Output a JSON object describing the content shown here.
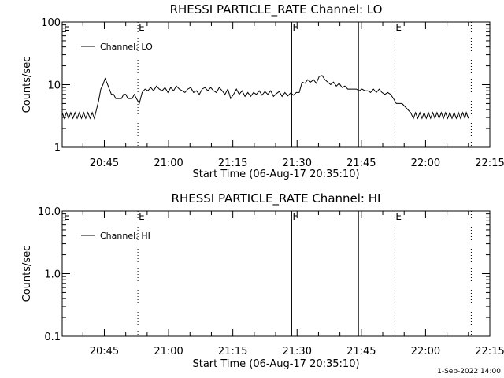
{
  "footer": "1-Sep-2022 14:00",
  "chart_data": [
    {
      "type": "line",
      "title": "RHESSI PARTICLE_RATE Channel: LO",
      "xlabel": "Start Time (06-Aug-17 20:35:10)",
      "ylabel": "Counts/sec",
      "yscale": "log",
      "ylim": [
        1,
        100
      ],
      "yticks": [
        {
          "v": 1,
          "label": "1"
        },
        {
          "v": 10,
          "label": "10"
        },
        {
          "v": 100,
          "label": "100"
        }
      ],
      "xlim": [
        "20:35:10",
        "22:15:00"
      ],
      "xticks": [
        "20:45",
        "21:00",
        "21:15",
        "21:30",
        "21:45",
        "22:00",
        "22:15"
      ],
      "legend": "top-left",
      "series": [
        {
          "name": "Channel: LO",
          "color": "#000000",
          "points": [
            [
              "20:35:10",
              3.6
            ],
            [
              "20:35:40",
              2.9
            ],
            [
              "20:36:10",
              3.6
            ],
            [
              "20:36:40",
              2.9
            ],
            [
              "20:37:10",
              3.6
            ],
            [
              "20:37:40",
              2.9
            ],
            [
              "20:38:10",
              3.6
            ],
            [
              "20:38:40",
              2.9
            ],
            [
              "20:39:10",
              3.6
            ],
            [
              "20:39:40",
              2.9
            ],
            [
              "20:40:10",
              3.6
            ],
            [
              "20:40:40",
              2.9
            ],
            [
              "20:41:10",
              3.6
            ],
            [
              "20:41:40",
              2.9
            ],
            [
              "20:42:10",
              3.6
            ],
            [
              "20:42:40",
              2.9
            ],
            [
              "20:43:10",
              4.0
            ],
            [
              "20:43:40",
              5.5
            ],
            [
              "20:44:10",
              8.5
            ],
            [
              "20:44:40",
              10.0
            ],
            [
              "20:45:10",
              12.5
            ],
            [
              "20:45:40",
              10.5
            ],
            [
              "20:46:10",
              8.5
            ],
            [
              "20:46:40",
              7.0
            ],
            [
              "20:47:10",
              7.0
            ],
            [
              "20:47:40",
              6.0
            ],
            [
              "20:48:10",
              6.0
            ],
            [
              "20:49:00",
              6.0
            ],
            [
              "20:49:30",
              7.0
            ],
            [
              "20:50:00",
              7.0
            ],
            [
              "20:50:30",
              6.0
            ],
            [
              "20:51:00",
              6.0
            ],
            [
              "20:51:30",
              6.0
            ],
            [
              "20:52:00",
              7.0
            ],
            [
              "20:52:30",
              6.0
            ],
            [
              "20:53:10",
              5.0
            ],
            [
              "20:53:50",
              7.5
            ],
            [
              "20:54:30",
              8.5
            ],
            [
              "20:55:10",
              8.0
            ],
            [
              "20:55:50",
              9.0
            ],
            [
              "20:56:30",
              8.0
            ],
            [
              "20:57:10",
              9.5
            ],
            [
              "20:57:50",
              8.5
            ],
            [
              "20:58:30",
              8.0
            ],
            [
              "20:59:10",
              9.0
            ],
            [
              "20:59:50",
              7.5
            ],
            [
              "21:00:30",
              9.0
            ],
            [
              "21:01:10",
              8.0
            ],
            [
              "21:01:50",
              9.5
            ],
            [
              "21:02:30",
              8.5
            ],
            [
              "21:03:10",
              8.0
            ],
            [
              "21:03:50",
              7.5
            ],
            [
              "21:04:30",
              8.5
            ],
            [
              "21:05:10",
              9.0
            ],
            [
              "21:05:50",
              7.5
            ],
            [
              "21:06:30",
              8.0
            ],
            [
              "21:07:10",
              7.0
            ],
            [
              "21:07:50",
              8.5
            ],
            [
              "21:08:30",
              9.0
            ],
            [
              "21:09:10",
              8.0
            ],
            [
              "21:09:50",
              9.0
            ],
            [
              "21:10:30",
              8.0
            ],
            [
              "21:11:10",
              7.5
            ],
            [
              "21:11:50",
              9.0
            ],
            [
              "21:12:30",
              8.0
            ],
            [
              "21:13:10",
              7.0
            ],
            [
              "21:13:50",
              8.5
            ],
            [
              "21:14:30",
              6.0
            ],
            [
              "21:15:10",
              7.0
            ],
            [
              "21:15:50",
              8.5
            ],
            [
              "21:16:30",
              7.0
            ],
            [
              "21:17:10",
              8.0
            ],
            [
              "21:17:50",
              6.5
            ],
            [
              "21:18:30",
              7.5
            ],
            [
              "21:19:10",
              6.5
            ],
            [
              "21:19:50",
              7.5
            ],
            [
              "21:20:30",
              7.0
            ],
            [
              "21:21:10",
              8.0
            ],
            [
              "21:21:50",
              6.8
            ],
            [
              "21:22:30",
              7.8
            ],
            [
              "21:23:10",
              7.0
            ],
            [
              "21:23:50",
              8.0
            ],
            [
              "21:24:30",
              6.5
            ],
            [
              "21:25:10",
              7.2
            ],
            [
              "21:25:50",
              7.8
            ],
            [
              "21:26:30",
              6.5
            ],
            [
              "21:27:10",
              7.5
            ],
            [
              "21:27:50",
              6.6
            ],
            [
              "21:28:30",
              7.4
            ],
            [
              "21:29:10",
              6.8
            ],
            [
              "21:29:50",
              7.5
            ],
            [
              "21:30:30",
              7.5
            ],
            [
              "21:31:10",
              11.0
            ],
            [
              "21:31:50",
              10.5
            ],
            [
              "21:32:30",
              12.0
            ],
            [
              "21:33:10",
              11.0
            ],
            [
              "21:33:50",
              12.0
            ],
            [
              "21:34:30",
              10.5
            ],
            [
              "21:35:10",
              13.5
            ],
            [
              "21:35:50",
              14.0
            ],
            [
              "21:36:30",
              12.0
            ],
            [
              "21:37:10",
              11.0
            ],
            [
              "21:37:50",
              10.0
            ],
            [
              "21:38:30",
              11.0
            ],
            [
              "21:39:10",
              9.5
            ],
            [
              "21:39:50",
              10.5
            ],
            [
              "21:40:30",
              9.0
            ],
            [
              "21:41:10",
              9.5
            ],
            [
              "21:41:50",
              8.5
            ],
            [
              "21:42:30",
              8.5
            ],
            [
              "21:43:10",
              8.5
            ],
            [
              "21:43:50",
              8.5
            ],
            [
              "21:44:30",
              8.0
            ],
            [
              "21:45:10",
              8.5
            ],
            [
              "21:45:50",
              8.0
            ],
            [
              "21:46:30",
              8.0
            ],
            [
              "21:47:10",
              7.5
            ],
            [
              "21:47:50",
              8.5
            ],
            [
              "21:48:30",
              7.5
            ],
            [
              "21:49:10",
              8.5
            ],
            [
              "21:49:50",
              7.5
            ],
            [
              "21:50:30",
              7.0
            ],
            [
              "21:51:10",
              7.5
            ],
            [
              "21:51:50",
              7.0
            ],
            [
              "21:52:30",
              6.0
            ],
            [
              "21:53:10",
              5.0
            ],
            [
              "21:53:50",
              5.0
            ],
            [
              "21:54:30",
              5.0
            ],
            [
              "21:55:10",
              4.5
            ],
            [
              "21:55:50",
              4.0
            ],
            [
              "21:56:30",
              3.6
            ],
            [
              "21:57:10",
              2.9
            ],
            [
              "21:57:40",
              3.6
            ],
            [
              "21:58:10",
              2.9
            ],
            [
              "21:58:40",
              3.6
            ],
            [
              "21:59:10",
              2.9
            ],
            [
              "21:59:40",
              3.6
            ],
            [
              "22:00:10",
              2.9
            ],
            [
              "22:00:40",
              3.6
            ],
            [
              "22:01:10",
              2.9
            ],
            [
              "22:01:40",
              3.6
            ],
            [
              "22:02:10",
              2.9
            ],
            [
              "22:02:40",
              3.6
            ],
            [
              "22:03:10",
              2.9
            ],
            [
              "22:03:40",
              3.6
            ],
            [
              "22:04:10",
              2.9
            ],
            [
              "22:04:40",
              3.6
            ],
            [
              "22:05:10",
              2.9
            ],
            [
              "22:05:40",
              3.6
            ],
            [
              "22:06:10",
              2.9
            ],
            [
              "22:06:40",
              3.6
            ],
            [
              "22:07:10",
              2.9
            ],
            [
              "22:07:40",
              3.6
            ],
            [
              "22:08:10",
              2.9
            ],
            [
              "22:08:40",
              3.6
            ],
            [
              "22:09:10",
              2.9
            ],
            [
              "22:09:30",
              3.6
            ],
            [
              "22:10:00",
              2.9
            ]
          ]
        }
      ],
      "markers": [
        {
          "time": "20:52:50",
          "label": "E",
          "style": "dotted"
        },
        {
          "time": "21:28:45",
          "label": "F",
          "style": "solid"
        },
        {
          "time": "21:44:20",
          "label": "",
          "style": "solid"
        },
        {
          "time": "21:52:50",
          "label": "E",
          "style": "dotted"
        },
        {
          "time": "22:10:40",
          "label": "",
          "style": "dotted"
        }
      ],
      "corner_marker": "E"
    },
    {
      "type": "line",
      "title": "RHESSI PARTICLE_RATE Channel: HI",
      "xlabel": "Start Time (06-Aug-17 20:35:10)",
      "ylabel": "Counts/sec",
      "yscale": "log",
      "ylim": [
        0.1,
        10
      ],
      "yticks": [
        {
          "v": 0.1,
          "label": "0.1"
        },
        {
          "v": 1,
          "label": "1.0"
        },
        {
          "v": 10,
          "label": "10.0"
        }
      ],
      "xlim": [
        "20:35:10",
        "22:15:00"
      ],
      "xticks": [
        "20:45",
        "21:00",
        "21:15",
        "21:30",
        "21:45",
        "22:00",
        "22:15"
      ],
      "legend": "top-left",
      "series": [
        {
          "name": "Channel: HI",
          "color": "#000000",
          "points": []
        }
      ],
      "markers": [
        {
          "time": "20:52:50",
          "label": "E",
          "style": "dotted"
        },
        {
          "time": "21:28:45",
          "label": "F",
          "style": "solid"
        },
        {
          "time": "21:44:20",
          "label": "",
          "style": "solid"
        },
        {
          "time": "21:52:50",
          "label": "E",
          "style": "dotted"
        },
        {
          "time": "22:10:40",
          "label": "",
          "style": "dotted"
        }
      ],
      "corner_marker": "E"
    }
  ]
}
